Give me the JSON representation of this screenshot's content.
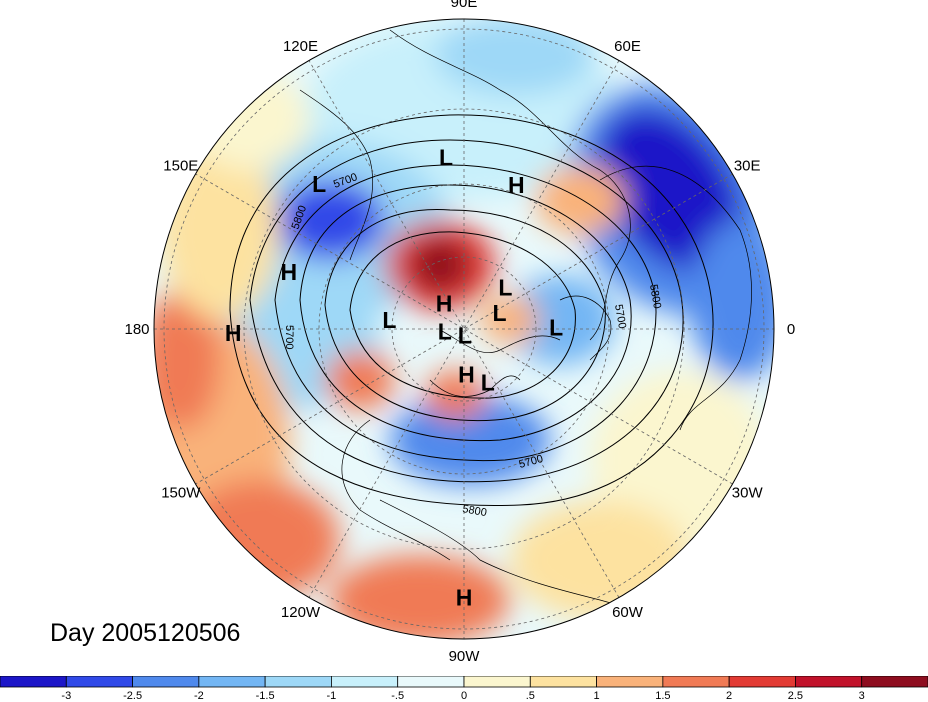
{
  "title": "Day 2005120506",
  "map": {
    "projection": "north polar stereographic",
    "longitude_labels": [
      {
        "text": "90E",
        "lon": 90
      },
      {
        "text": "60E",
        "lon": 60
      },
      {
        "text": "30E",
        "lon": 30
      },
      {
        "text": "0",
        "lon": 0
      },
      {
        "text": "30W",
        "lon": -30
      },
      {
        "text": "60W",
        "lon": -60
      },
      {
        "text": "90W",
        "lon": -90
      },
      {
        "text": "120W",
        "lon": -120
      },
      {
        "text": "150W",
        "lon": -150
      },
      {
        "text": "180",
        "lon": 180
      },
      {
        "text": "150E",
        "lon": 150
      },
      {
        "text": "120E",
        "lon": 120
      }
    ],
    "pressure_centers": [
      {
        "text": "L",
        "lon": 96,
        "lat": 40
      },
      {
        "text": "H",
        "lon": 70,
        "lat": 45
      },
      {
        "text": "L",
        "lon": 135,
        "lat": 32
      },
      {
        "text": "H",
        "lon": 162,
        "lat": 37
      },
      {
        "text": "H",
        "lon": 181,
        "lat": 26
      },
      {
        "text": "H",
        "lon": 128,
        "lat": 80
      },
      {
        "text": "L",
        "lon": 45,
        "lat": 72
      },
      {
        "text": "L",
        "lon": 24,
        "lat": 78
      },
      {
        "text": "L",
        "lon": 1,
        "lat": 62
      },
      {
        "text": "L",
        "lon": 173,
        "lat": 67
      },
      {
        "text": "L",
        "lon": 188,
        "lat": 84
      },
      {
        "text": "L",
        "lon": -83,
        "lat": 88
      },
      {
        "text": "H",
        "lon": -87,
        "lat": 76
      },
      {
        "text": "L",
        "lon": -66,
        "lat": 72
      },
      {
        "text": "H",
        "lon": -90,
        "lat": 18
      }
    ],
    "contour_labels": [
      "5700",
      "5800",
      "5800",
      "5700",
      "5700",
      "5700",
      "5800"
    ],
    "contour_levels": [
      5400,
      5500,
      5600,
      5700,
      5800
    ]
  },
  "colorbar": {
    "ticks": [
      "-3",
      "-2.5",
      "-2",
      "-1.5",
      "-1",
      "-.5",
      "0",
      ".5",
      "1",
      "1.5",
      "2",
      "2.5",
      "3"
    ],
    "colors": [
      "#1c16c8",
      "#3049e8",
      "#4f89ec",
      "#73b6f4",
      "#9ed8f7",
      "#c8f0fb",
      "#e9f9fb",
      "#fbf6cf",
      "#fde2a0",
      "#f9b27a",
      "#f07a55",
      "#e23b34",
      "#c1122a",
      "#8e0d1f"
    ]
  }
}
